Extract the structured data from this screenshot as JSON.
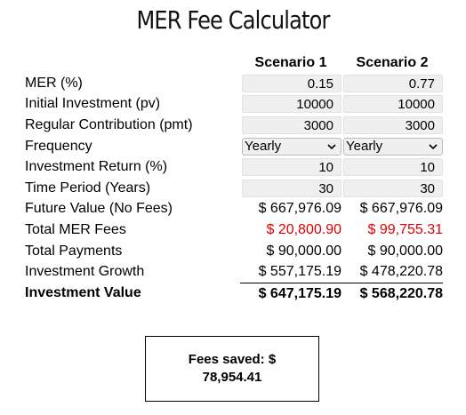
{
  "title": "MER Fee Calculator",
  "headers": {
    "scenario1": "Scenario 1",
    "scenario2": "Scenario 2"
  },
  "rows": {
    "mer": {
      "label": "MER (%)",
      "s1": "0.15",
      "s2": "0.77"
    },
    "pv": {
      "label": "Initial Investment (pv)",
      "s1": "10000",
      "s2": "10000"
    },
    "pmt": {
      "label": "Regular Contribution (pmt)",
      "s1": "3000",
      "s2": "3000"
    },
    "frequency": {
      "label": "Frequency",
      "s1": "Yearly",
      "s2": "Yearly"
    },
    "return": {
      "label": "Investment Return (%)",
      "s1": "10",
      "s2": "10"
    },
    "period": {
      "label": "Time Period (Years)",
      "s1": "30",
      "s2": "30"
    },
    "fv_no_fees": {
      "label": "Future Value (No Fees)",
      "s1": "$ 667,976.09",
      "s2": "$ 667,976.09"
    },
    "total_fees": {
      "label": "Total MER Fees",
      "s1": "$ 20,800.90",
      "s2": "$ 99,755.31"
    },
    "total_payments": {
      "label": "Total Payments",
      "s1": "$ 90,000.00",
      "s2": "$ 90,000.00"
    },
    "growth": {
      "label": "Investment Growth",
      "s1": "$ 557,175.19",
      "s2": "$ 478,220.78"
    },
    "value": {
      "label": "Investment Value",
      "s1": "$ 647,175.19",
      "s2": "$ 568,220.78"
    }
  },
  "fees_saved": "Fees saved: $ 78,954.41",
  "colors": {
    "fee_text": "#e00000",
    "input_bg": "#efefef"
  },
  "icons": {
    "select_arrow": "chevron-down-icon"
  }
}
